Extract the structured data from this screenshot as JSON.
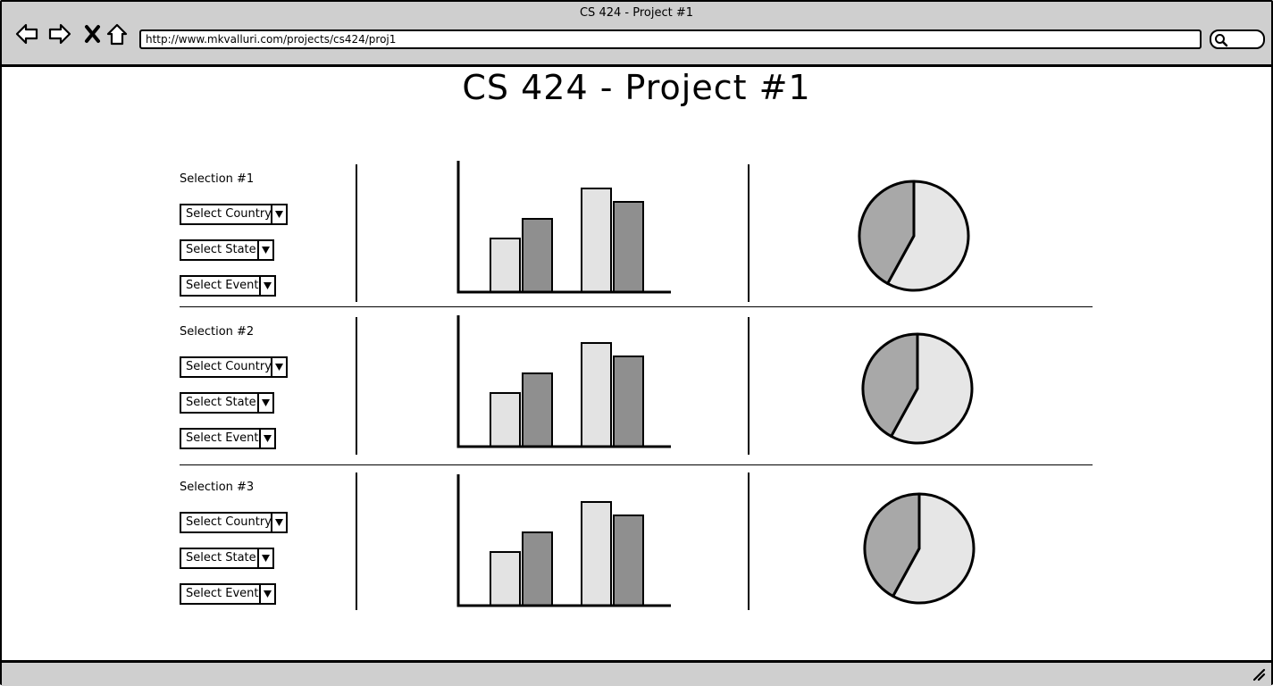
{
  "window": {
    "title": "CS 424 - Project #1",
    "url": "http://www.mkvalluri.com/projects/cs424/proj1"
  },
  "page": {
    "title": "CS 424 - Project #1"
  },
  "colors": {
    "chrome": "#cfcfcf",
    "bar_light": "#e3e3e3",
    "bar_dark": "#8f8f8f",
    "pie_light": "#e6e6e6",
    "pie_dark": "#a8a8a8"
  },
  "selections": [
    {
      "label": "Selection #1",
      "country": "Select Country",
      "state": "Select State",
      "event": "Select Event"
    },
    {
      "label": "Selection #2",
      "country": "Select Country",
      "state": "Select State",
      "event": "Select Event"
    },
    {
      "label": "Selection #3",
      "country": "Select Country",
      "state": "Select State",
      "event": "Select Event"
    }
  ],
  "chart_data": [
    {
      "type": "bar",
      "series": [
        {
          "values": [
            60,
            116
          ]
        },
        {
          "values": [
            82,
            101
          ]
        }
      ]
    },
    {
      "type": "pie",
      "values": [
        58,
        42
      ]
    },
    {
      "type": "bar",
      "series": [
        {
          "values": [
            60,
            116
          ]
        },
        {
          "values": [
            82,
            101
          ]
        }
      ]
    },
    {
      "type": "pie",
      "values": [
        58,
        42
      ]
    },
    {
      "type": "bar",
      "series": [
        {
          "values": [
            60,
            116
          ]
        },
        {
          "values": [
            82,
            101
          ]
        }
      ]
    },
    {
      "type": "pie",
      "values": [
        58,
        42
      ]
    }
  ]
}
